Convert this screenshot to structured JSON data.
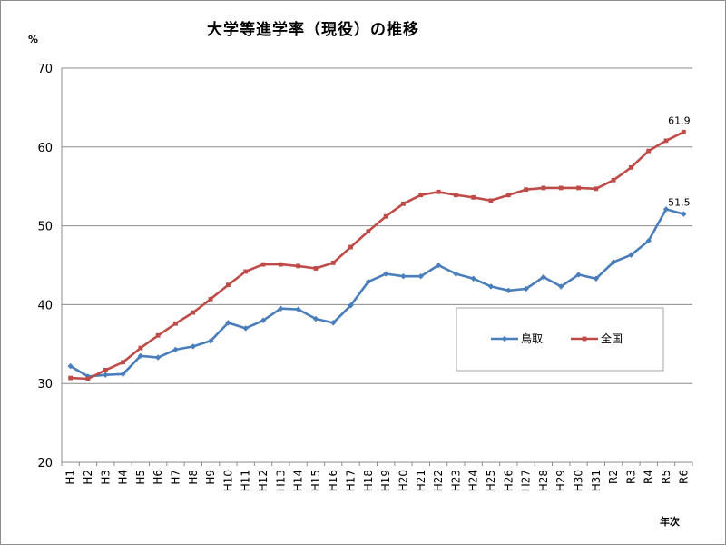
{
  "chart_data": {
    "type": "line",
    "title": "大学等進学率（現役）の推移",
    "ylabel": "%",
    "xlabel": "年次",
    "ylim": [
      20,
      70
    ],
    "yticks": [
      20,
      30,
      40,
      50,
      60,
      70
    ],
    "grid": true,
    "legend_position": "right-middle",
    "categories": [
      "H1",
      "H2",
      "H3",
      "H4",
      "H5",
      "H6",
      "H7",
      "H8",
      "H9",
      "H10",
      "H11",
      "H12",
      "H13",
      "H14",
      "H15",
      "H16",
      "H17",
      "H18",
      "H19",
      "H20",
      "H21",
      "H22",
      "H23",
      "H24",
      "H25",
      "H26",
      "H27",
      "H28",
      "H29",
      "H30",
      "H31",
      "R2",
      "R3",
      "R4",
      "R5",
      "R6"
    ],
    "series": [
      {
        "name": "鳥取",
        "color": "#4a7ebb",
        "marker": "diamond",
        "values": [
          32.2,
          30.9,
          31.1,
          31.2,
          33.5,
          33.3,
          34.3,
          34.7,
          35.4,
          37.7,
          37.0,
          38.0,
          39.5,
          39.4,
          38.2,
          37.7,
          39.9,
          42.9,
          43.9,
          43.6,
          43.6,
          45.0,
          43.9,
          43.3,
          42.3,
          41.8,
          42.0,
          43.5,
          42.3,
          43.8,
          43.3,
          45.4,
          46.3,
          48.1,
          52.1,
          51.5
        ],
        "end_label": "51.5"
      },
      {
        "name": "全国",
        "color": "#be4b48",
        "marker": "square",
        "values": [
          30.7,
          30.6,
          31.7,
          32.7,
          34.5,
          36.1,
          37.6,
          39.0,
          40.7,
          42.5,
          44.2,
          45.1,
          45.1,
          44.9,
          44.6,
          45.3,
          47.3,
          49.3,
          51.2,
          52.8,
          53.9,
          54.3,
          53.9,
          53.6,
          53.2,
          53.9,
          54.6,
          54.8,
          54.8,
          54.8,
          54.7,
          55.8,
          57.4,
          59.5,
          60.8,
          61.9
        ],
        "end_label": "61.9"
      }
    ]
  }
}
